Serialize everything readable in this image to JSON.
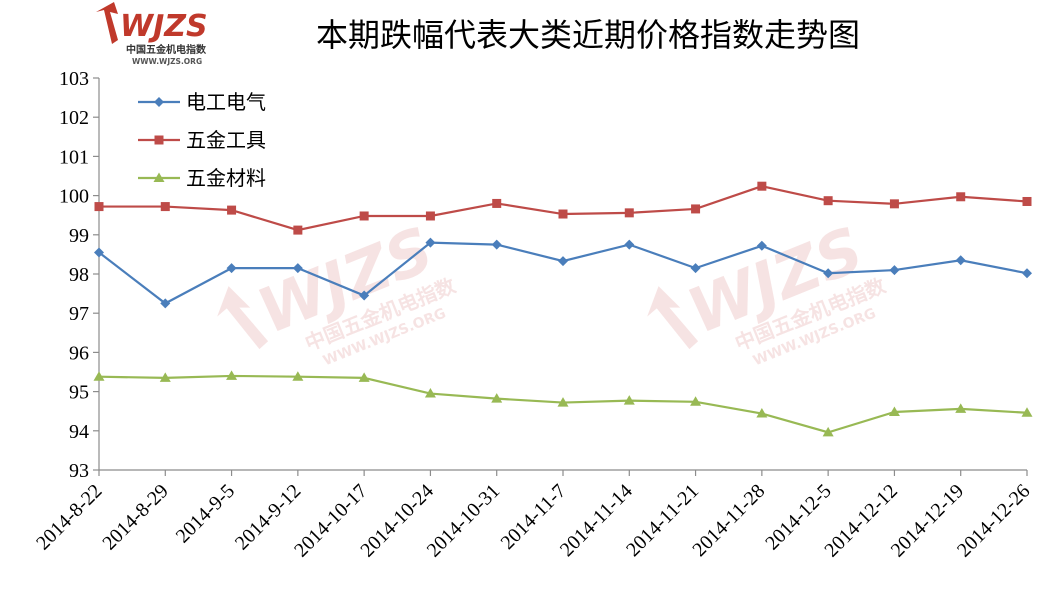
{
  "logo": {
    "brand": "WJZS",
    "subtitle": "中国五金机电指数",
    "url": "WWW.WJZS.ORG"
  },
  "watermarks": [
    {
      "brand": "WJZS",
      "subtitle": "中国五金机电指数",
      "url": "WWW.WJZS.ORG"
    },
    {
      "brand": "WJZS",
      "subtitle": "中国五金机电指数",
      "url": "WWW.WJZS.ORG"
    }
  ],
  "colors": {
    "axis": "#8c8c8c",
    "logo_red": "#c0392b",
    "watermark": "#e8b0b0"
  },
  "chart_data": {
    "type": "line",
    "title": "本期跌幅代表大类近期价格指数走势图",
    "categories": [
      "2014-8-22",
      "2014-8-29",
      "2014-9-5",
      "2014-9-12",
      "2014-10-17",
      "2014-10-24",
      "2014-10-31",
      "2014-11-7",
      "2014-11-14",
      "2014-11-21",
      "2014-11-28",
      "2014-12-5",
      "2014-12-12",
      "2014-12-19",
      "2014-12-26"
    ],
    "ylim": [
      93,
      103
    ],
    "yticks": [
      "93",
      "94",
      "95",
      "96",
      "97",
      "98",
      "99",
      "100",
      "101",
      "102",
      "103"
    ],
    "grid": false,
    "legend_position": "top-left",
    "series": [
      {
        "name": "电工电气",
        "color": "#4a7ebb",
        "marker": "diamond",
        "values": [
          98.55,
          97.25,
          98.15,
          98.15,
          97.45,
          98.8,
          98.75,
          98.33,
          98.75,
          98.15,
          98.72,
          98.02,
          98.1,
          98.35,
          98.02
        ]
      },
      {
        "name": "五金工具",
        "color": "#be4b48",
        "marker": "square",
        "values": [
          99.72,
          99.72,
          99.63,
          99.12,
          99.48,
          99.48,
          99.8,
          99.53,
          99.56,
          99.66,
          100.24,
          99.87,
          99.79,
          99.97,
          99.85
        ]
      },
      {
        "name": "五金材料",
        "color": "#98b954",
        "marker": "triangle",
        "values": [
          95.38,
          95.35,
          95.4,
          95.38,
          95.35,
          94.95,
          94.82,
          94.72,
          94.77,
          94.74,
          94.44,
          93.96,
          94.48,
          94.56,
          94.46
        ]
      }
    ]
  }
}
